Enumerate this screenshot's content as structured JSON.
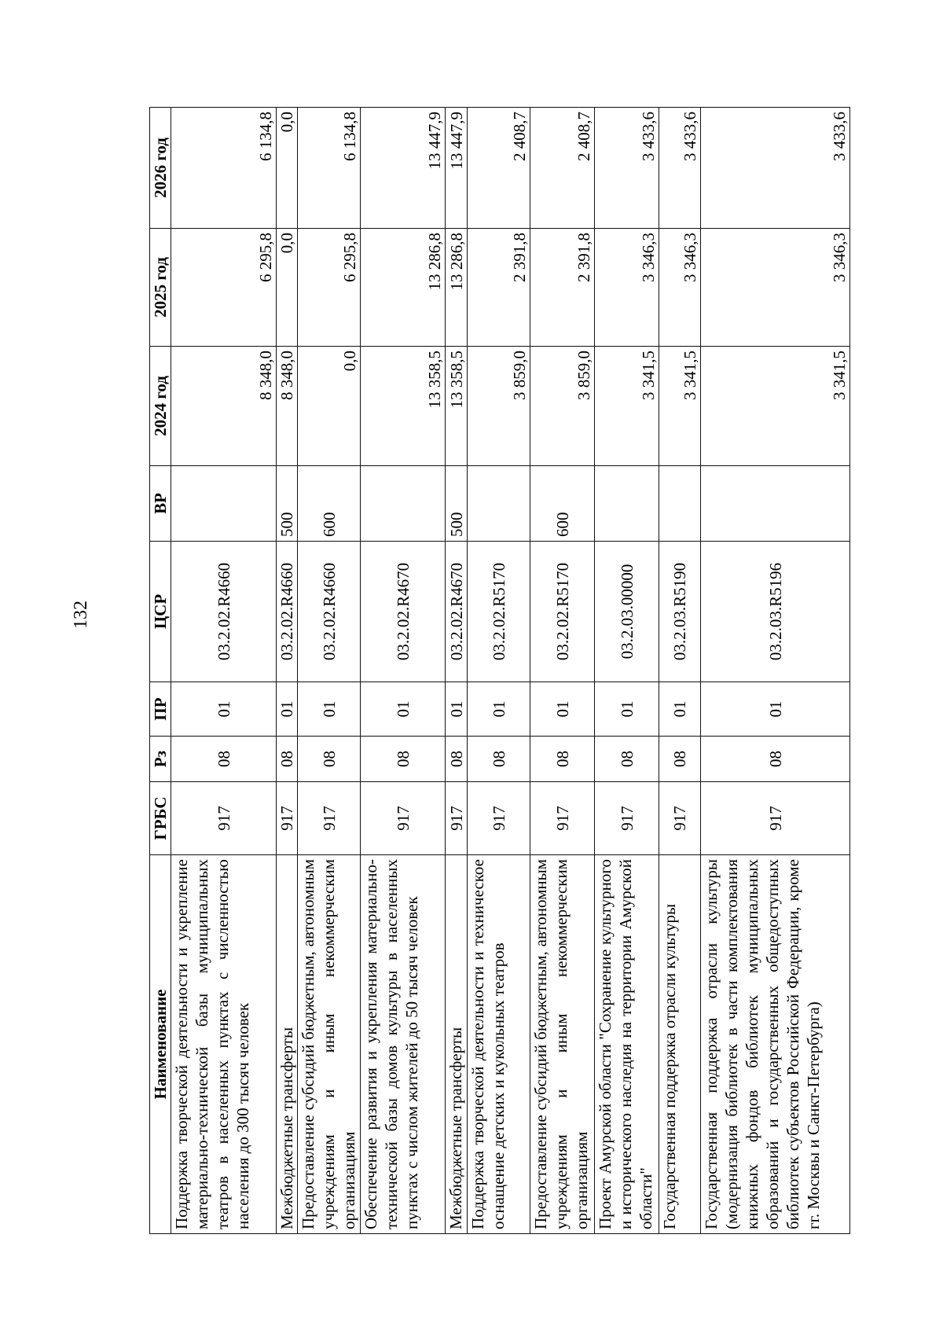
{
  "page_number": "132",
  "table": {
    "headers": [
      "Наименование",
      "ГРБС",
      "Рз",
      "ПР",
      "ЦСР",
      "ВР",
      "2024 год",
      "2025 год",
      "2026 год"
    ],
    "rows": [
      {
        "name": "Поддержка творческой деятельности и укрепление материально-технической базы муниципальных театров в населенных пунктах с численностью населения до 300 тысяч человек",
        "grbs": "917",
        "rz": "08",
        "pr": "01",
        "csr": "03.2.02.R4660",
        "vr": "",
        "y2024": "8 348,0",
        "y2025": "6 295,8",
        "y2026": "6 134,8"
      },
      {
        "name": "Межбюджетные трансферты",
        "grbs": "917",
        "rz": "08",
        "pr": "01",
        "csr": "03.2.02.R4660",
        "vr": "500",
        "y2024": "8 348,0",
        "y2025": "0,0",
        "y2026": "0,0"
      },
      {
        "name": "Предоставление субсидий бюджетным, автономным учреждениям и иным некоммерческим организациям",
        "grbs": "917",
        "rz": "08",
        "pr": "01",
        "csr": "03.2.02.R4660",
        "vr": "600",
        "y2024": "0,0",
        "y2025": "6 295,8",
        "y2026": "6 134,8"
      },
      {
        "name": "Обеспечение развития и укрепления материально-технической базы домов культуры в населенных пунктах с числом жителей до 50 тысяч человек",
        "grbs": "917",
        "rz": "08",
        "pr": "01",
        "csr": "03.2.02.R4670",
        "vr": "",
        "y2024": "13 358,5",
        "y2025": "13 286,8",
        "y2026": "13 447,9"
      },
      {
        "name": "Межбюджетные трансферты",
        "grbs": "917",
        "rz": "08",
        "pr": "01",
        "csr": "03.2.02.R4670",
        "vr": "500",
        "y2024": "13 358,5",
        "y2025": "13 286,8",
        "y2026": "13 447,9"
      },
      {
        "name": "Поддержка творческой деятельности и техническое оснащение детских и кукольных театров",
        "grbs": "917",
        "rz": "08",
        "pr": "01",
        "csr": "03.2.02.R5170",
        "vr": "",
        "y2024": "3 859,0",
        "y2025": "2 391,8",
        "y2026": "2 408,7"
      },
      {
        "name": "Предоставление субсидий бюджетным, автономным учреждениям и иным некоммерческим организациям",
        "grbs": "917",
        "rz": "08",
        "pr": "01",
        "csr": "03.2.02.R5170",
        "vr": "600",
        "y2024": "3 859,0",
        "y2025": "2 391,8",
        "y2026": "2 408,7"
      },
      {
        "name": "Проект Амурской области \"Сохранение культурного и исторического наследия на территории Амурской области\"",
        "grbs": "917",
        "rz": "08",
        "pr": "01",
        "csr": "03.2.03.00000",
        "vr": "",
        "y2024": "3 341,5",
        "y2025": "3 346,3",
        "y2026": "3 433,6"
      },
      {
        "name": "Государственная поддержка отрасли культуры",
        "grbs": "917",
        "rz": "08",
        "pr": "01",
        "csr": "03.2.03.R5190",
        "vr": "",
        "y2024": "3 341,5",
        "y2025": "3 346,3",
        "y2026": "3 433,6"
      },
      {
        "name": "Государственная поддержка отрасли культуры (модернизация библиотек в части комплектования книжных фондов библиотек муниципальных образований и государственных общедоступных библиотек субъектов Российской Федерации, кроме гг. Москвы и Санкт-Петербурга)",
        "grbs": "917",
        "rz": "08",
        "pr": "01",
        "csr": "03.2.03.R5196",
        "vr": "",
        "y2024": "3 341,5",
        "y2025": "3 346,3",
        "y2026": "3 433,6"
      }
    ]
  }
}
